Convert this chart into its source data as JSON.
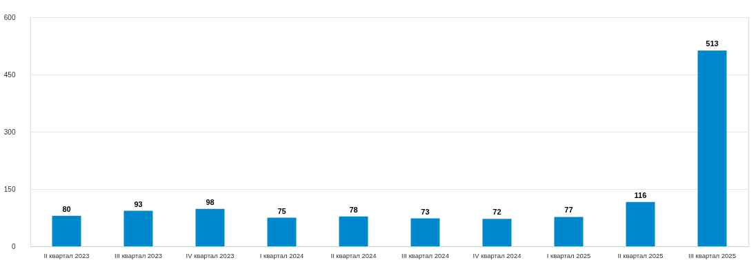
{
  "chart_data": {
    "type": "bar",
    "categories": [
      "II квартал 2023",
      "III квартал 2023",
      "IV квартал 2023",
      "I квартал 2024",
      "II квартал 2024",
      "III квартал 2024",
      "IV квартал 2024",
      "I квартал 2025",
      "II квартал 2025",
      "III квартал 2025"
    ],
    "values": [
      80,
      93,
      98,
      75,
      78,
      73,
      72,
      77,
      116,
      513
    ],
    "color": "#0088cc",
    "ylim": [
      0,
      600
    ],
    "yticks": [
      0,
      150,
      300,
      450,
      600
    ],
    "grid": "y",
    "data_labels": true
  }
}
